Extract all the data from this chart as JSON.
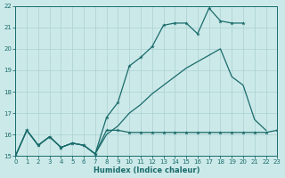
{
  "xlabel": "Humidex (Indice chaleur)",
  "xlim": [
    0,
    23
  ],
  "ylim": [
    15,
    22
  ],
  "yticks": [
    15,
    16,
    17,
    18,
    19,
    20,
    21,
    22
  ],
  "xticks": [
    0,
    1,
    2,
    3,
    4,
    5,
    6,
    7,
    8,
    9,
    10,
    11,
    12,
    13,
    14,
    15,
    16,
    17,
    18,
    19,
    20,
    21,
    22,
    23
  ],
  "bg_color": "#cce9e9",
  "grid_color": "#b0d4d4",
  "line_color": "#1a6b6b",
  "line1_x": [
    0,
    1,
    2,
    3,
    4,
    5,
    6,
    7,
    8,
    9,
    10,
    11,
    12,
    13,
    14,
    15,
    16,
    17,
    18,
    19,
    20,
    21,
    22
  ],
  "line1_y": [
    15.0,
    16.2,
    15.5,
    15.9,
    15.4,
    15.6,
    15.5,
    15.1,
    16.8,
    17.5,
    19.2,
    19.6,
    20.1,
    21.1,
    21.2,
    21.2,
    20.7,
    21.9,
    21.3,
    21.2,
    21.2,
    null,
    null
  ],
  "line2_x": [
    0,
    1,
    2,
    3,
    4,
    5,
    6,
    7,
    8,
    9,
    10,
    11,
    12,
    13,
    14,
    15,
    16,
    17,
    18,
    19,
    20,
    21,
    22
  ],
  "line2_y": [
    15.0,
    16.2,
    15.5,
    15.9,
    15.4,
    15.6,
    15.5,
    15.1,
    16.0,
    16.4,
    17.0,
    17.4,
    17.9,
    18.3,
    18.7,
    19.1,
    19.4,
    19.7,
    20.0,
    18.7,
    18.3,
    16.7,
    16.2
  ],
  "line3_x": [
    0,
    1,
    2,
    3,
    4,
    5,
    6,
    7,
    8,
    9,
    10,
    11,
    12,
    13,
    14,
    15,
    16,
    17,
    18,
    19,
    20,
    21,
    22,
    23
  ],
  "line3_y": [
    15.0,
    16.2,
    15.5,
    15.9,
    15.4,
    15.6,
    15.5,
    15.1,
    16.2,
    16.2,
    16.1,
    16.1,
    16.1,
    16.1,
    16.1,
    16.1,
    16.1,
    16.1,
    16.1,
    16.1,
    16.1,
    16.1,
    16.1,
    16.2
  ]
}
